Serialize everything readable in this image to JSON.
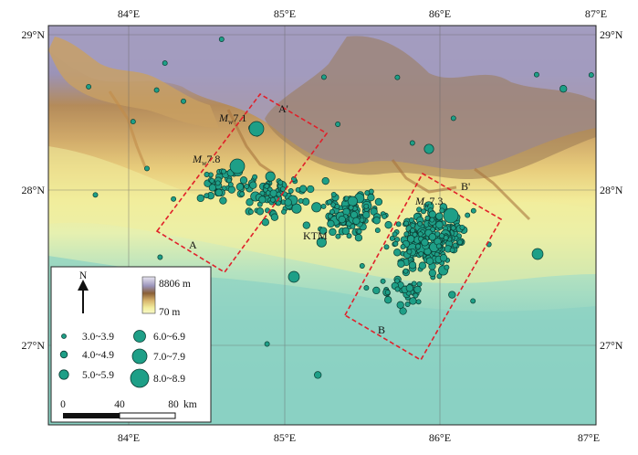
{
  "axes": {
    "lon_ticks": [
      "84°E",
      "85°E",
      "86°E",
      "87°E"
    ],
    "lat_ticks_left": [
      "29°N",
      "28°N",
      "27°N"
    ],
    "lat_ticks_right": [
      "29°N",
      "28°N",
      "27°N"
    ]
  },
  "labels": {
    "mainshock_prefix": "M",
    "mainshock_sub": "w",
    "mainshock_mag": "7.8",
    "aftershock1_prefix": "M",
    "aftershock1_sub": "w",
    "aftershock1_mag": "7.1",
    "aftershock2_prefix": "M",
    "aftershock2_sub": "w",
    "aftershock2_mag": "7.3",
    "ktm": "KTM",
    "profile_a": "A",
    "profile_a_prime": "A'",
    "profile_b": "B",
    "profile_b_prime": "B'"
  },
  "legend": {
    "north": "N",
    "elev_max": "8806 m",
    "elev_min": "70 m",
    "magnitude_classes": [
      "3.0~3.9",
      "4.0~4.9",
      "5.0~5.9",
      "6.0~6.9",
      "7.0~7.9",
      "8.0~8.9"
    ],
    "scale_ticks": [
      "0",
      "40",
      "80"
    ],
    "scale_unit": "km"
  },
  "colors": {
    "quake_fill": "#1e9f87",
    "quake_stroke": "#0b3d33",
    "box_stroke": "#e0202a",
    "lowland": "#8fd4c4",
    "foothills": "#f4f3a8",
    "midland": "#e7c270",
    "high": "#b98a50",
    "peak": "#9c97bd"
  }
}
